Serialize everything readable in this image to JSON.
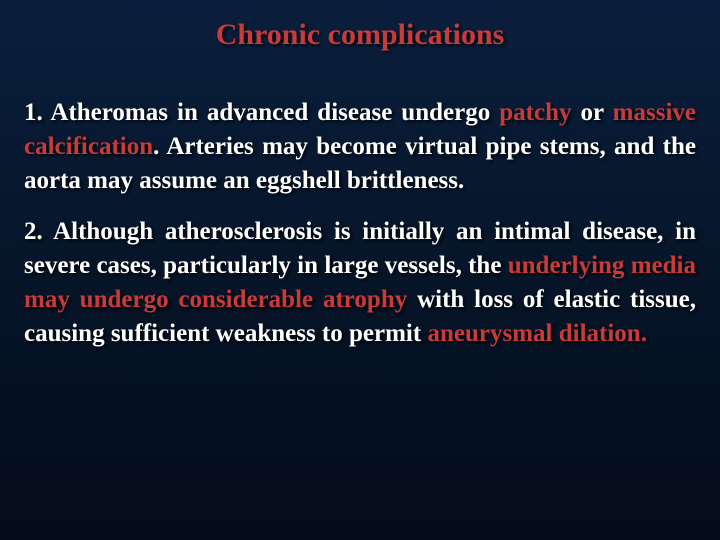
{
  "colors": {
    "background_top": "#0a1f3d",
    "background_mid": "#061529",
    "background_bottom": "#030c1a",
    "title_color": "#c93a3a",
    "text_color": "#ffffff",
    "highlight_color": "#c93a3a",
    "shadow_color": "rgba(0,0,0,0.8)"
  },
  "typography": {
    "font_family": "Times New Roman",
    "title_fontsize": 30,
    "body_fontsize": 25,
    "font_weight": "bold",
    "text_align": "justify",
    "line_height": 1.35
  },
  "title": "Chronic complications",
  "paragraphs": {
    "p1": {
      "seg1": "1. Atheromas in advanced disease undergo ",
      "h1": "patchy",
      "seg2": " or ",
      "h2": "massive calcification",
      "seg3": ". Arteries may become virtual pipe stems, and the aorta may assume an eggshell brittleness."
    },
    "p2": {
      "seg1": "2. Although atherosclerosis is initially an intimal disease, in severe cases, particularly in large vessels, the ",
      "h1": "underlying media may undergo considerable atrophy",
      "seg2": " with loss of elastic tissue, causing sufficient weakness to permit ",
      "h2": "aneurysmal dilation."
    }
  }
}
